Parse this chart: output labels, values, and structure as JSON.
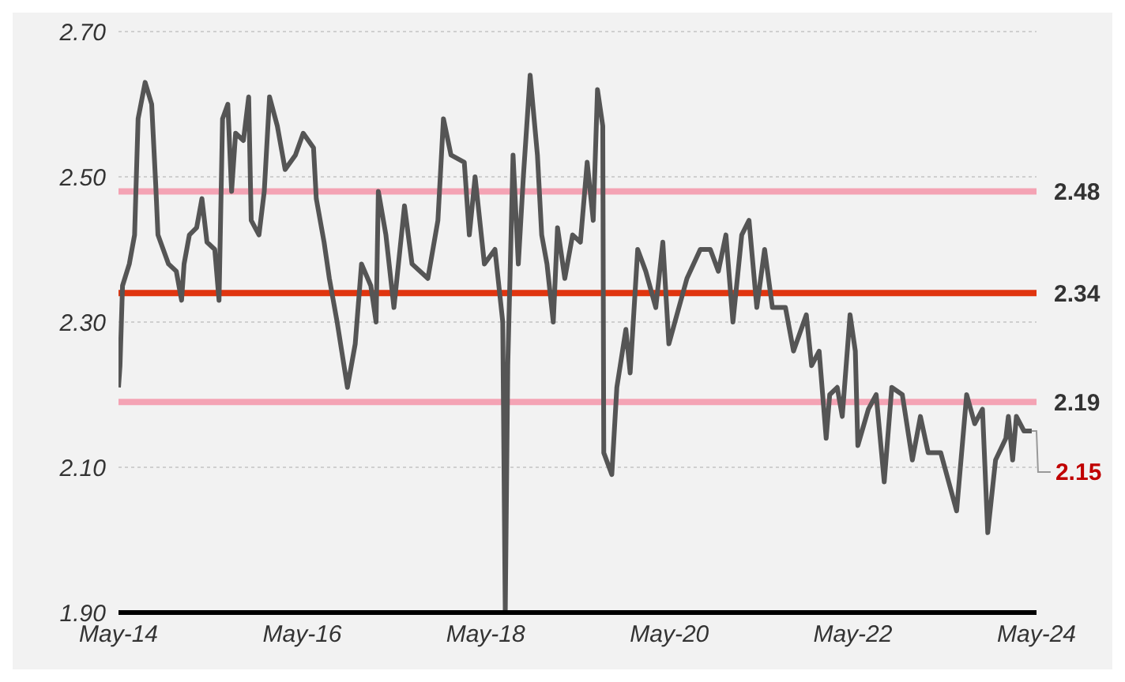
{
  "chart_data": {
    "type": "line",
    "x": [
      "2014-05-01",
      "2014-05-07",
      "2014-05-17",
      "2014-06-13",
      "2014-07-04",
      "2014-07-18",
      "2014-08-15",
      "2014-09-10",
      "2014-09-26",
      "2014-10-05",
      "2014-11-16",
      "2014-12-17",
      "2015-01-07",
      "2015-01-17",
      "2015-02-07",
      "2015-03-08",
      "2015-03-29",
      "2015-04-18",
      "2015-05-19",
      "2015-06-05",
      "2015-06-19",
      "2015-07-10",
      "2015-07-25",
      "2015-08-10",
      "2015-09-10",
      "2015-10-01",
      "2015-10-11",
      "2015-11-11",
      "2015-12-02",
      "2015-12-23",
      "2016-01-23",
      "2016-02-23",
      "2016-04-04",
      "2016-05-05",
      "2016-06-15",
      "2016-06-26",
      "2016-07-27",
      "2016-08-17",
      "2016-09-17",
      "2016-10-28",
      "2016-11-28",
      "2016-12-23",
      "2017-01-29",
      "2017-02-19",
      "2017-02-28",
      "2017-03-30",
      "2017-05-01",
      "2017-06-12",
      "2017-07-12",
      "2017-09-13",
      "2017-10-23",
      "2017-11-14",
      "2017-12-14",
      "2018-02-05",
      "2018-02-25",
      "2018-03-20",
      "2018-04-26",
      "2018-06-07",
      "2018-07-08",
      "2018-07-18",
      "2018-07-28",
      "2018-08-18",
      "2018-09-08",
      "2018-09-28",
      "2018-10-25",
      "2018-11-23",
      "2018-12-10",
      "2018-12-31",
      "2019-01-25",
      "2019-02-11",
      "2019-03-12",
      "2019-04-12",
      "2019-05-13",
      "2019-06-09",
      "2019-07-03",
      "2019-07-20",
      "2019-08-10",
      "2019-08-14",
      "2019-09-15",
      "2019-10-05",
      "2019-11-10",
      "2019-11-27",
      "2019-12-27",
      "2020-01-28",
      "2020-03-08",
      "2020-04-05",
      "2020-04-29",
      "2020-07-10",
      "2020-09-01",
      "2020-10-11",
      "2020-11-12",
      "2020-12-12",
      "2021-01-09",
      "2021-02-13",
      "2021-03-14",
      "2021-04-14",
      "2021-05-15",
      "2021-06-15",
      "2021-08-06",
      "2021-09-07",
      "2021-10-28",
      "2021-11-18",
      "2021-12-18",
      "2022-01-15",
      "2022-01-29",
      "2022-02-28",
      "2022-03-20",
      "2022-04-20",
      "2022-05-11",
      "2022-05-21",
      "2022-07-02",
      "2022-08-02",
      "2022-09-03",
      "2022-10-03",
      "2022-11-14",
      "2022-12-24",
      "2023-01-25",
      "2023-02-25",
      "2023-04-16",
      "2023-06-18",
      "2023-07-28",
      "2023-08-29",
      "2023-09-29",
      "2023-10-20",
      "2023-11-20",
      "2023-12-31",
      "2024-01-10",
      "2024-01-27",
      "2024-02-11",
      "2024-03-12",
      "2024-04-12"
    ],
    "series": [
      {
        "color": "#555555",
        "values": [
          2.21,
          2.24,
          2.35,
          2.38,
          2.42,
          2.58,
          2.63,
          2.6,
          2.49,
          2.42,
          2.38,
          2.37,
          2.33,
          2.38,
          2.42,
          2.43,
          2.47,
          2.41,
          2.4,
          2.33,
          2.58,
          2.6,
          2.48,
          2.56,
          2.55,
          2.61,
          2.44,
          2.42,
          2.48,
          2.61,
          2.57,
          2.51,
          2.53,
          2.56,
          2.54,
          2.47,
          2.41,
          2.36,
          2.3,
          2.21,
          2.27,
          2.38,
          2.35,
          2.3,
          2.48,
          2.42,
          2.32,
          2.46,
          2.38,
          2.36,
          2.44,
          2.58,
          2.53,
          2.52,
          2.42,
          2.5,
          2.38,
          2.4,
          2.3,
          1.9,
          2.24,
          2.53,
          2.38,
          2.5,
          2.64,
          2.53,
          2.42,
          2.38,
          2.3,
          2.43,
          2.36,
          2.42,
          2.41,
          2.52,
          2.44,
          2.62,
          2.57,
          2.12,
          2.09,
          2.21,
          2.29,
          2.23,
          2.4,
          2.37,
          2.32,
          2.41,
          2.27,
          2.36,
          2.4,
          2.4,
          2.37,
          2.42,
          2.3,
          2.42,
          2.44,
          2.32,
          2.4,
          2.32,
          2.32,
          2.26,
          2.31,
          2.24,
          2.26,
          2.14,
          2.2,
          2.21,
          2.17,
          2.31,
          2.26,
          2.13,
          2.18,
          2.2,
          2.08,
          2.21,
          2.2,
          2.11,
          2.17,
          2.12,
          2.12,
          2.04,
          2.2,
          2.16,
          2.18,
          2.01,
          2.11,
          2.14,
          2.17,
          2.11,
          2.17,
          2.15,
          2.15
        ]
      }
    ],
    "xlim": [
      "2014-05-01",
      "2024-05-01"
    ],
    "xticks": [
      {
        "value": "2014-05-01",
        "label": "May-14"
      },
      {
        "value": "2016-05-01",
        "label": "May-16"
      },
      {
        "value": "2018-05-01",
        "label": "May-18"
      },
      {
        "value": "2020-05-01",
        "label": "May-20"
      },
      {
        "value": "2022-05-01",
        "label": "May-22"
      },
      {
        "value": "2024-05-01",
        "label": "May-24"
      }
    ],
    "ylim": [
      1.9,
      2.7
    ],
    "yticks": [
      {
        "value": 1.9,
        "label": "1.90"
      },
      {
        "value": 2.1,
        "label": "2.10"
      },
      {
        "value": 2.3,
        "label": "2.30"
      },
      {
        "value": 2.5,
        "label": "2.50"
      },
      {
        "value": 2.7,
        "label": "2.70"
      }
    ],
    "grid": "y",
    "marker": "none",
    "line_style": "solid",
    "ref_lines": [
      {
        "axis": "y",
        "value": 2.48,
        "label": "2.48",
        "color": "#f4a3b4"
      },
      {
        "axis": "y",
        "value": 2.34,
        "label": "2.34",
        "color": "#e0350f"
      },
      {
        "axis": "y",
        "value": 2.19,
        "label": "2.19",
        "color": "#f4a3b4"
      }
    ],
    "annotations": [
      {
        "text": "2.15",
        "x": "2024-04-12",
        "y": 2.15
      }
    ]
  }
}
